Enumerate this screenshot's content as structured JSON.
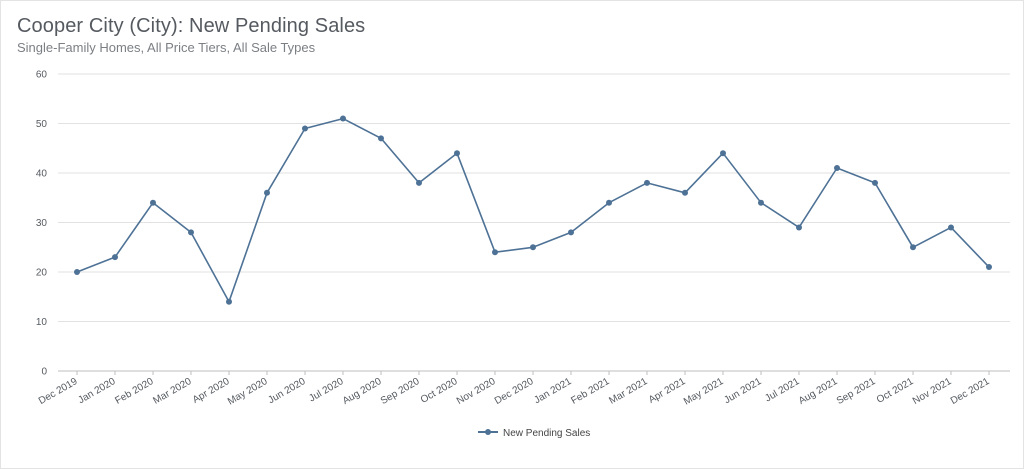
{
  "chart_data": {
    "type": "line",
    "title": "Cooper City (City): New Pending Sales",
    "subtitle": "Single-Family Homes, All Price Tiers, All Sale Types",
    "categories": [
      "Dec 2019",
      "Jan 2020",
      "Feb 2020",
      "Mar 2020",
      "Apr 2020",
      "May 2020",
      "Jun 2020",
      "Jul 2020",
      "Aug 2020",
      "Sep 2020",
      "Oct 2020",
      "Nov 2020",
      "Dec 2020",
      "Jan 2021",
      "Feb 2021",
      "Mar 2021",
      "Apr 2021",
      "May 2021",
      "Jun 2021",
      "Jul 2021",
      "Aug 2021",
      "Sep 2021",
      "Oct 2021",
      "Nov 2021",
      "Dec 2021"
    ],
    "series": [
      {
        "name": "New Pending Sales",
        "values": [
          20,
          23,
          34,
          28,
          14,
          36,
          49,
          51,
          47,
          38,
          44,
          24,
          25,
          28,
          34,
          38,
          36,
          44,
          34,
          29,
          41,
          38,
          25,
          29,
          21
        ]
      }
    ],
    "ylim": [
      0,
      60
    ],
    "yticks": [
      0,
      10,
      20,
      30,
      40,
      50,
      60
    ],
    "grid": true,
    "legend": "bottom-center",
    "colors": {
      "line": "#4e7296",
      "grid": "#e2e2e2",
      "axis": "#bfbfbf"
    }
  }
}
